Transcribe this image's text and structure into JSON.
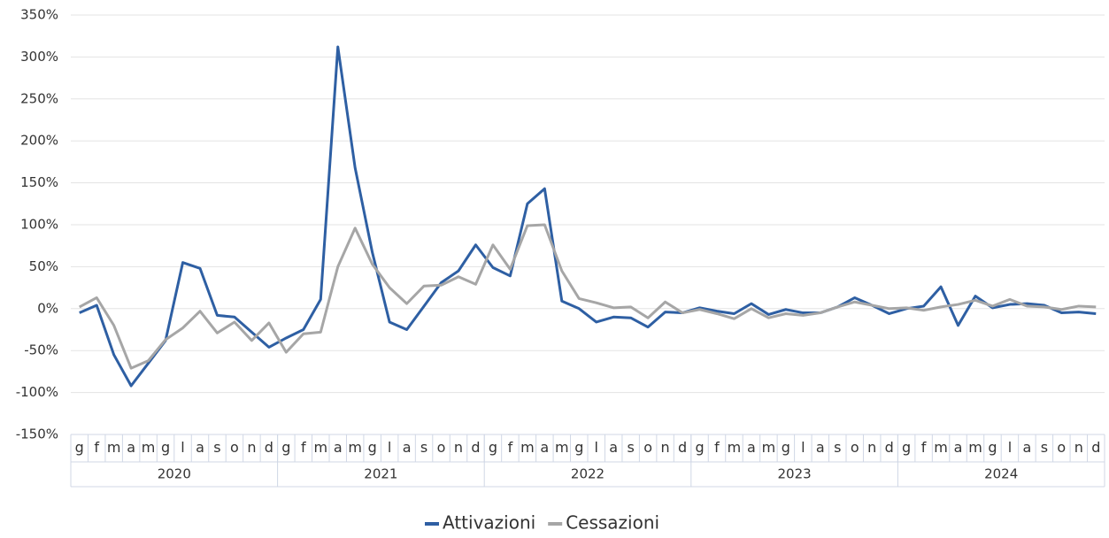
{
  "chart_data": {
    "type": "line",
    "categories": [
      "g",
      "f",
      "m",
      "a",
      "m",
      "g",
      "l",
      "a",
      "s",
      "o",
      "n",
      "d",
      "g",
      "f",
      "m",
      "a",
      "m",
      "g",
      "l",
      "a",
      "s",
      "o",
      "n",
      "d",
      "g",
      "f",
      "m",
      "a",
      "m",
      "g",
      "l",
      "a",
      "s",
      "o",
      "n",
      "d",
      "g",
      "f",
      "m",
      "a",
      "m",
      "g",
      "l",
      "a",
      "s",
      "o",
      "n",
      "d",
      "g",
      "f",
      "m",
      "a",
      "m",
      "g",
      "l",
      "a",
      "s",
      "o",
      "n",
      "d"
    ],
    "x_groups": [
      "2020",
      "2021",
      "2022",
      "2023",
      "2024"
    ],
    "series": [
      {
        "name": "Attivazioni",
        "color": "#2e5fa3",
        "values": [
          -5,
          4,
          -55,
          -92,
          -65,
          -38,
          55,
          48,
          -8,
          -10,
          -28,
          -46,
          -35,
          -25,
          11,
          312,
          168,
          67,
          -16,
          -25,
          3,
          31,
          45,
          76,
          49,
          39,
          125,
          143,
          9,
          0,
          -16,
          -10,
          -11,
          -22,
          -4,
          -5,
          1,
          -3,
          -6,
          6,
          -7,
          -1,
          -5,
          -5,
          2,
          13,
          4,
          -6,
          0,
          3,
          26,
          -20,
          15,
          1,
          5,
          6,
          4,
          -5,
          -4,
          -6
        ]
      },
      {
        "name": "Cessazioni",
        "color": "#a6a6a6",
        "values": [
          2,
          13,
          -20,
          -71,
          -62,
          -37,
          -23,
          -3,
          -29,
          -16,
          -38,
          -17,
          -52,
          -30,
          -28,
          50,
          96,
          53,
          25,
          6,
          27,
          28,
          38,
          29,
          76,
          47,
          99,
          100,
          45,
          12,
          7,
          1,
          2,
          -11,
          8,
          -5,
          -1,
          -6,
          -12,
          0,
          -11,
          -6,
          -8,
          -5,
          2,
          8,
          4,
          0,
          1,
          -2,
          2,
          5,
          10,
          3,
          11,
          3,
          2,
          -1,
          3,
          2
        ]
      }
    ],
    "ylim": [
      -150,
      350
    ],
    "yticks": [
      {
        "value": -150,
        "label": "-150%"
      },
      {
        "value": -100,
        "label": "-100%"
      },
      {
        "value": -50,
        "label": "-50%"
      },
      {
        "value": 0,
        "label": "0%"
      },
      {
        "value": 50,
        "label": "50%"
      },
      {
        "value": 100,
        "label": "100%"
      },
      {
        "value": 150,
        "label": "150%"
      },
      {
        "value": 200,
        "label": "200%"
      },
      {
        "value": 250,
        "label": "250%"
      },
      {
        "value": 300,
        "label": "300%"
      },
      {
        "value": 350,
        "label": "350%"
      }
    ],
    "grid": true,
    "legend": "bottom"
  }
}
